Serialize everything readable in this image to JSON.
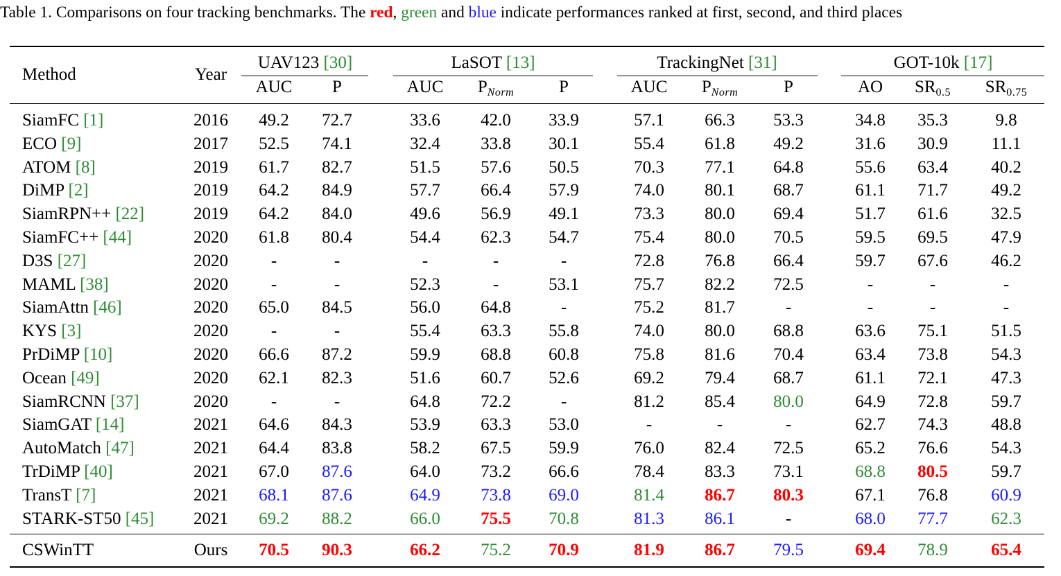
{
  "caption": {
    "prefix": "Table 1. Comparisons on four tracking benchmarks. The ",
    "red": "red",
    "sep1": ", ",
    "green": "green",
    "sep2": " and ",
    "blue": "blue",
    "suffix": " indicate performances ranked at first, second, and third places"
  },
  "header": {
    "method": "Method",
    "year": "Year",
    "groups": [
      {
        "name": "UAV123 ",
        "ref": "[30]"
      },
      {
        "name": "LaSOT ",
        "ref": "[13]"
      },
      {
        "name": "TrackingNet ",
        "ref": "[31]"
      },
      {
        "name": "GOT-10k ",
        "ref": "[17]"
      }
    ],
    "cols": {
      "uav_auc": "AUC",
      "uav_p": "P",
      "lasot_auc": "AUC",
      "lasot_pnorm_main": "P",
      "lasot_pnorm_sub": "Norm",
      "lasot_p": "P",
      "tn_auc": "AUC",
      "tn_pnorm_main": "P",
      "tn_pnorm_sub": "Norm",
      "tn_p": "P",
      "got_ao": "AO",
      "got_sr05_main": "SR",
      "got_sr05_sub": "0.5",
      "got_sr075_main": "SR",
      "got_sr075_sub": "0.75"
    }
  },
  "colors": {
    "first": "#ff0000",
    "second": "#2e8b34",
    "third": "#1a1aff"
  },
  "rows": [
    {
      "method": "SiamFC ",
      "ref": "[1]",
      "year": "2016",
      "values": [
        "49.2",
        "72.7",
        "33.6",
        "42.0",
        "33.9",
        "57.1",
        "66.3",
        "53.3",
        "34.8",
        "35.3",
        "9.8"
      ],
      "ranks": [
        "",
        "",
        "",
        "",
        "",
        "",
        "",
        "",
        "",
        "",
        ""
      ]
    },
    {
      "method": "ECO ",
      "ref": "[9]",
      "year": "2017",
      "values": [
        "52.5",
        "74.1",
        "32.4",
        "33.8",
        "30.1",
        "55.4",
        "61.8",
        "49.2",
        "31.6",
        "30.9",
        "11.1"
      ],
      "ranks": [
        "",
        "",
        "",
        "",
        "",
        "",
        "",
        "",
        "",
        "",
        ""
      ]
    },
    {
      "method": "ATOM ",
      "ref": "[8]",
      "year": "2019",
      "values": [
        "61.7",
        "82.7",
        "51.5",
        "57.6",
        "50.5",
        "70.3",
        "77.1",
        "64.8",
        "55.6",
        "63.4",
        "40.2"
      ],
      "ranks": [
        "",
        "",
        "",
        "",
        "",
        "",
        "",
        "",
        "",
        "",
        ""
      ]
    },
    {
      "method": "DiMP ",
      "ref": "[2]",
      "year": "2019",
      "values": [
        "64.2",
        "84.9",
        "57.7",
        "66.4",
        "57.9",
        "74.0",
        "80.1",
        "68.7",
        "61.1",
        "71.7",
        "49.2"
      ],
      "ranks": [
        "",
        "",
        "",
        "",
        "",
        "",
        "",
        "",
        "",
        "",
        ""
      ]
    },
    {
      "method": "SiamRPN++ ",
      "ref": "[22]",
      "year": "2019",
      "values": [
        "64.2",
        "84.0",
        "49.6",
        "56.9",
        "49.1",
        "73.3",
        "80.0",
        "69.4",
        "51.7",
        "61.6",
        "32.5"
      ],
      "ranks": [
        "",
        "",
        "",
        "",
        "",
        "",
        "",
        "",
        "",
        "",
        ""
      ]
    },
    {
      "method": "SiamFC++ ",
      "ref": "[44]",
      "year": "2020",
      "values": [
        "61.8",
        "80.4",
        "54.4",
        "62.3",
        "54.7",
        "75.4",
        "80.0",
        "70.5",
        "59.5",
        "69.5",
        "47.9"
      ],
      "ranks": [
        "",
        "",
        "",
        "",
        "",
        "",
        "",
        "",
        "",
        "",
        ""
      ]
    },
    {
      "method": "D3S ",
      "ref": "[27]",
      "year": "2020",
      "values": [
        "-",
        "-",
        "-",
        "-",
        "-",
        "72.8",
        "76.8",
        "66.4",
        "59.7",
        "67.6",
        "46.2"
      ],
      "ranks": [
        "",
        "",
        "",
        "",
        "",
        "",
        "",
        "",
        "",
        "",
        ""
      ]
    },
    {
      "method": "MAML ",
      "ref": "[38]",
      "year": "2020",
      "values": [
        "-",
        "-",
        "52.3",
        "-",
        "53.1",
        "75.7",
        "82.2",
        "72.5",
        "-",
        "-",
        "-"
      ],
      "ranks": [
        "",
        "",
        "",
        "",
        "",
        "",
        "",
        "",
        "",
        "",
        ""
      ]
    },
    {
      "method": "SiamAttn ",
      "ref": "[46]",
      "year": "2020",
      "values": [
        "65.0",
        "84.5",
        "56.0",
        "64.8",
        "-",
        "75.2",
        "81.7",
        "-",
        "-",
        "-",
        "-"
      ],
      "ranks": [
        "",
        "",
        "",
        "",
        "",
        "",
        "",
        "",
        "",
        "",
        ""
      ]
    },
    {
      "method": "KYS ",
      "ref": "[3]",
      "year": "2020",
      "values": [
        "-",
        "-",
        "55.4",
        "63.3",
        "55.8",
        "74.0",
        "80.0",
        "68.8",
        "63.6",
        "75.1",
        "51.5"
      ],
      "ranks": [
        "",
        "",
        "",
        "",
        "",
        "",
        "",
        "",
        "",
        "",
        ""
      ]
    },
    {
      "method": "PrDiMP ",
      "ref": "[10]",
      "year": "2020",
      "values": [
        "66.6",
        "87.2",
        "59.9",
        "68.8",
        "60.8",
        "75.8",
        "81.6",
        "70.4",
        "63.4",
        "73.8",
        "54.3"
      ],
      "ranks": [
        "",
        "",
        "",
        "",
        "",
        "",
        "",
        "",
        "",
        "",
        ""
      ]
    },
    {
      "method": "Ocean ",
      "ref": "[49]",
      "year": "2020",
      "values": [
        "62.1",
        "82.3",
        "51.6",
        "60.7",
        "52.6",
        "69.2",
        "79.4",
        "68.7",
        "61.1",
        "72.1",
        "47.3"
      ],
      "ranks": [
        "",
        "",
        "",
        "",
        "",
        "",
        "",
        "",
        "",
        "",
        ""
      ]
    },
    {
      "method": "SiamRCNN ",
      "ref": "[37]",
      "year": "2020",
      "values": [
        "-",
        "-",
        "64.8",
        "72.2",
        "-",
        "81.2",
        "85.4",
        "80.0",
        "64.9",
        "72.8",
        "59.7"
      ],
      "ranks": [
        "",
        "",
        "",
        "",
        "",
        "",
        "",
        "second",
        "",
        "",
        ""
      ]
    },
    {
      "method": "SiamGAT ",
      "ref": "[14]",
      "year": "2021",
      "values": [
        "64.6",
        "84.3",
        "53.9",
        "63.3",
        "53.0",
        "-",
        "-",
        "-",
        "62.7",
        "74.3",
        "48.8"
      ],
      "ranks": [
        "",
        "",
        "",
        "",
        "",
        "",
        "",
        "",
        "",
        "",
        ""
      ]
    },
    {
      "method": "AutoMatch ",
      "ref": "[47]",
      "year": "2021",
      "values": [
        "64.4",
        "83.8",
        "58.2",
        "67.5",
        "59.9",
        "76.0",
        "82.4",
        "72.5",
        "65.2",
        "76.6",
        "54.3"
      ],
      "ranks": [
        "",
        "",
        "",
        "",
        "",
        "",
        "",
        "",
        "",
        "",
        ""
      ]
    },
    {
      "method": "TrDiMP ",
      "ref": "[40]",
      "year": "2021",
      "values": [
        "67.0",
        "87.6",
        "64.0",
        "73.2",
        "66.6",
        "78.4",
        "83.3",
        "73.1",
        "68.8",
        "80.5",
        "59.7"
      ],
      "ranks": [
        "",
        "third",
        "",
        "",
        "",
        "",
        "",
        "",
        "second",
        "first",
        ""
      ]
    },
    {
      "method": "TransT ",
      "ref": "[7]",
      "year": "2021",
      "values": [
        "68.1",
        "87.6",
        "64.9",
        "73.8",
        "69.0",
        "81.4",
        "86.7",
        "80.3",
        "67.1",
        "76.8",
        "60.9"
      ],
      "ranks": [
        "third",
        "third",
        "third",
        "third",
        "third",
        "second",
        "first",
        "first",
        "",
        "",
        "third"
      ]
    },
    {
      "method": "STARK-ST50 ",
      "ref": "[45]",
      "year": "2021",
      "values": [
        "69.2",
        "88.2",
        "66.0",
        "75.5",
        "70.8",
        "81.3",
        "86.1",
        "-",
        "68.0",
        "77.7",
        "62.3"
      ],
      "ranks": [
        "second",
        "second",
        "second",
        "first",
        "second",
        "third",
        "third",
        "",
        "third",
        "third",
        "second"
      ]
    }
  ],
  "ours": {
    "method": "CSWinTT",
    "year": "Ours",
    "values": [
      "70.5",
      "90.3",
      "66.2",
      "75.2",
      "70.9",
      "81.9",
      "86.7",
      "79.5",
      "69.4",
      "78.9",
      "65.4"
    ],
    "ranks": [
      "first",
      "first",
      "first",
      "second",
      "first",
      "first",
      "first",
      "third",
      "first",
      "second",
      "first"
    ]
  }
}
